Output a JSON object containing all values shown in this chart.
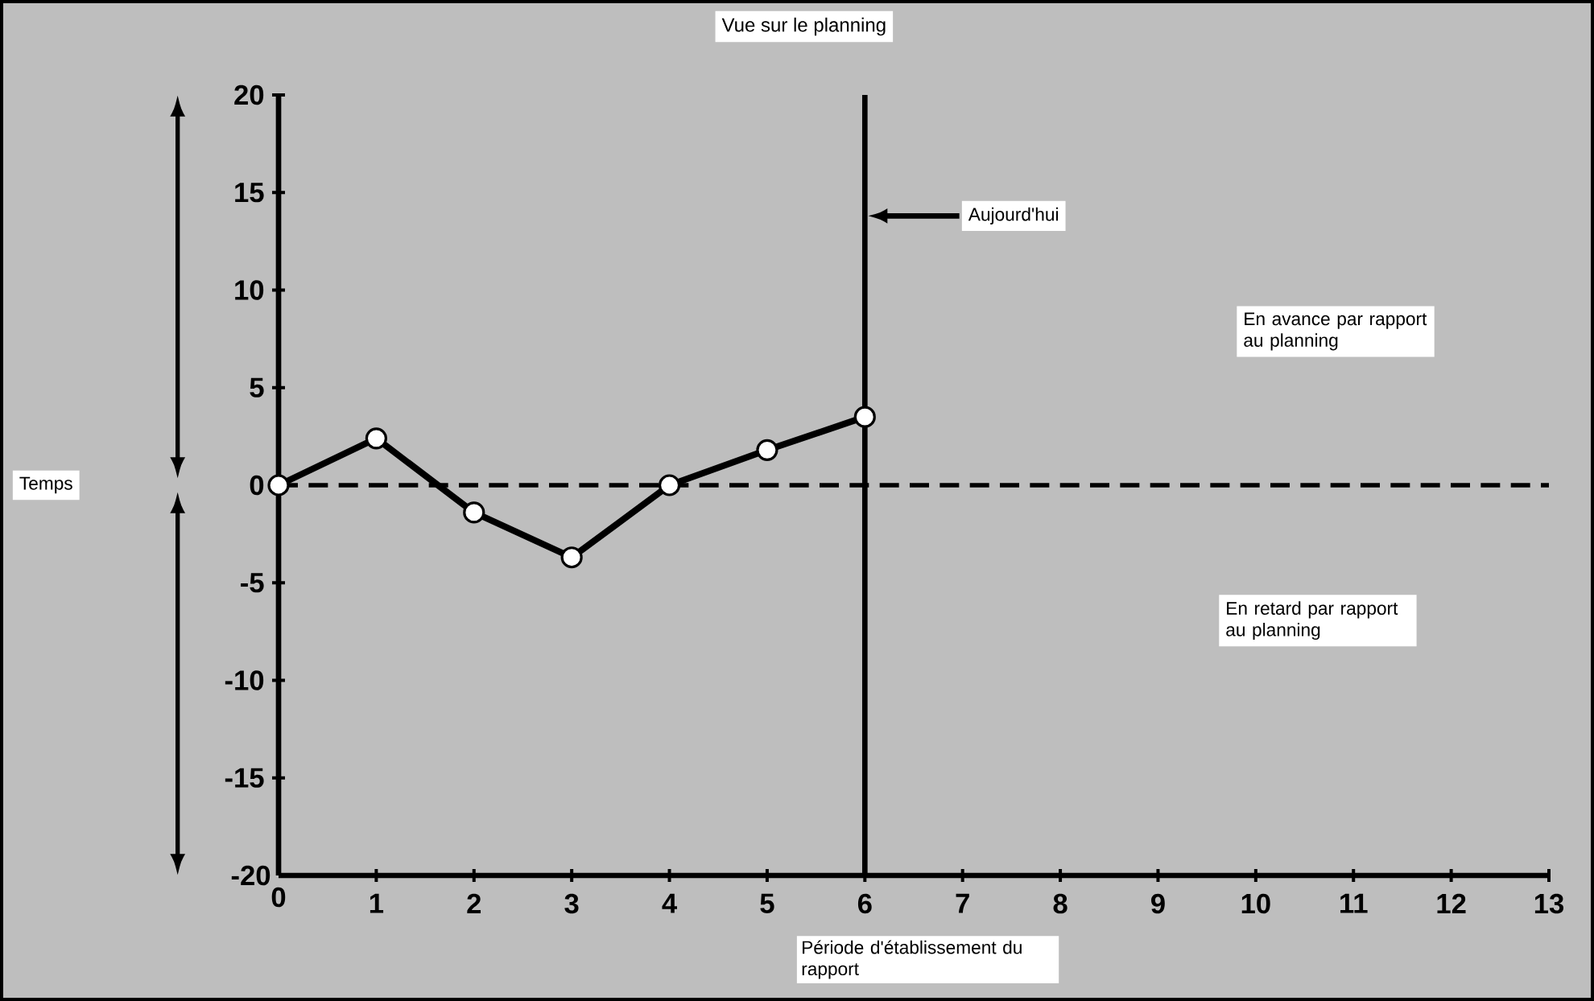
{
  "chart_data": {
    "type": "line",
    "title": "Vue sur le planning",
    "xlabel": "Période d'établissement du rapport",
    "x": [
      0,
      1,
      2,
      3,
      4,
      5,
      6
    ],
    "series": [
      {
        "color": "#000000",
        "values": [
          0,
          2.4,
          -1.4,
          -3.7,
          0,
          1.8,
          3.5
        ]
      }
    ],
    "xlim": [
      0,
      13
    ],
    "xticks": [
      0,
      1,
      2,
      3,
      4,
      5,
      6,
      7,
      8,
      9,
      10,
      11,
      12,
      13
    ],
    "ylim": [
      -20,
      20
    ],
    "yticks": [
      -20,
      -15,
      -10,
      -5,
      0,
      5,
      10,
      15,
      20
    ],
    "ref_lines": [
      {
        "axis": "x",
        "value": 6,
        "color": "#000000",
        "label": "Aujourd'hui"
      },
      {
        "axis": "y",
        "value": 0,
        "color": "#000000",
        "line_style": "dashed"
      }
    ],
    "annotations": [
      "En avance par rapport au planning",
      "En retard par rapport au planning",
      "Temps"
    ],
    "marker": "circle",
    "line_style": "solid"
  }
}
